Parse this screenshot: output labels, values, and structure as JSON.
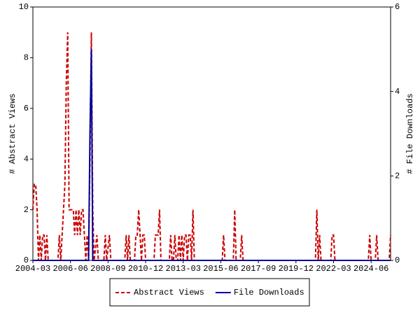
{
  "chart_data": {
    "type": "line",
    "ylabel": "# Abstract Views",
    "y2label": "# File Downloads",
    "x": [
      "2004-03",
      "2004-04",
      "2004-05",
      "2004-06",
      "2004-07",
      "2004-08",
      "2004-09",
      "2004-10",
      "2004-11",
      "2004-12",
      "2005-01",
      "2005-02",
      "2005-09",
      "2005-10",
      "2005-11",
      "2005-12",
      "2006-01",
      "2006-02",
      "2006-03",
      "2006-04",
      "2006-05",
      "2006-07",
      "2006-08",
      "2006-09",
      "2006-10",
      "2006-11",
      "2006-12",
      "2007-01",
      "2007-02",
      "2007-03",
      "2007-04",
      "2007-05",
      "2007-06",
      "2007-07",
      "2007-08",
      "2007-09",
      "2007-10",
      "2007-11",
      "2008-01",
      "2008-02",
      "2008-06",
      "2008-07",
      "2008-08",
      "2008-10",
      "2008-11",
      "2009-09",
      "2009-10",
      "2009-11",
      "2009-12",
      "2010-01",
      "2010-04",
      "2010-05",
      "2010-06",
      "2010-07",
      "2010-08",
      "2010-09",
      "2010-10",
      "2010-11",
      "2010-12",
      "2011-06",
      "2011-07",
      "2011-08",
      "2011-09",
      "2011-10",
      "2011-11",
      "2012-05",
      "2012-06",
      "2012-07",
      "2012-08",
      "2012-09",
      "2012-10",
      "2012-11",
      "2012-12",
      "2013-01",
      "2013-02",
      "2013-03",
      "2013-04",
      "2013-05",
      "2013-06",
      "2013-07",
      "2013-08",
      "2013-09",
      "2013-10",
      "2013-11",
      "2015-07",
      "2015-08",
      "2015-09",
      "2016-03",
      "2016-04",
      "2016-05",
      "2016-08",
      "2016-09",
      "2016-10",
      "2021-02",
      "2021-03",
      "2021-04",
      "2021-05",
      "2021-06",
      "2022-01",
      "2022-02",
      "2022-03",
      "2022-04",
      "2024-04",
      "2024-05",
      "2024-06",
      "2024-09",
      "2024-10",
      "2024-11",
      "2025-06",
      "2025-07",
      "2025-08"
    ],
    "series": [
      {
        "name": "Abstract Views",
        "color": "#cc0000",
        "dash": true,
        "values": [
          2,
          3,
          3,
          2,
          0,
          1,
          0,
          1,
          1,
          0,
          1,
          0,
          0,
          1,
          0,
          1,
          2,
          3,
          7,
          9,
          2,
          2,
          2,
          1,
          2,
          1,
          2,
          1,
          2,
          2,
          1,
          0,
          1,
          0,
          4,
          9,
          2,
          0,
          1,
          0,
          0,
          1,
          0,
          1,
          0,
          0,
          1,
          0,
          1,
          0,
          0,
          1,
          1,
          2,
          1,
          0,
          1,
          1,
          0,
          0,
          1,
          1,
          1,
          2,
          0,
          0,
          1,
          0,
          0,
          1,
          0,
          0,
          1,
          0,
          1,
          0,
          1,
          1,
          0,
          1,
          1,
          0,
          2,
          0,
          0,
          1,
          0,
          0,
          2,
          0,
          0,
          1,
          0,
          0,
          2,
          0,
          1,
          0,
          0,
          1,
          1,
          0,
          0,
          1,
          0,
          0,
          1,
          0,
          0,
          0,
          1
        ]
      },
      {
        "name": "File Downloads",
        "color": "#000099",
        "dash": false,
        "axis": "y2",
        "values": [
          0,
          0,
          0,
          0,
          0,
          0,
          0,
          0,
          0,
          0,
          0,
          0,
          0,
          0,
          0,
          0,
          0,
          0,
          0,
          0,
          0,
          0,
          0,
          0,
          0,
          0,
          0,
          0,
          0,
          0,
          0,
          0,
          0,
          0,
          3,
          5,
          0,
          0,
          0,
          0,
          0,
          0,
          0,
          0,
          0,
          0,
          0,
          0,
          0,
          0,
          0,
          0,
          0,
          0,
          0,
          0,
          0,
          0,
          0,
          0,
          0,
          0,
          0,
          0,
          0,
          0,
          0,
          0,
          0,
          0,
          0,
          0,
          0,
          0,
          0,
          0,
          0,
          0,
          0,
          0,
          0,
          0,
          0,
          0,
          0,
          0,
          0,
          0,
          0,
          0,
          0,
          0,
          0,
          0,
          0,
          0,
          0,
          0,
          0,
          0,
          0,
          0,
          0,
          0,
          0,
          0,
          0,
          0,
          0,
          0,
          0
        ]
      }
    ],
    "xlim": [
      "2004-03",
      "2025-08"
    ],
    "xticks": [
      "2004-03",
      "2006-06",
      "2008-09",
      "2010-12",
      "2013-03",
      "2015-06",
      "2017-09",
      "2019-12",
      "2022-03",
      "2024-06"
    ],
    "ylim": [
      0,
      10
    ],
    "yticks": [
      0,
      2,
      4,
      6,
      8,
      10
    ],
    "y2lim": [
      0,
      6
    ],
    "y2ticks": [
      0,
      2,
      4,
      6
    ]
  }
}
